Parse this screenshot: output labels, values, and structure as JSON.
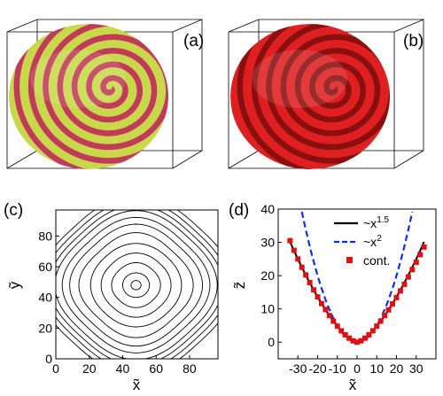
{
  "panels": {
    "a": {
      "label": "(a)",
      "surface_colors": [
        "#c8d84a",
        "#c23a5a"
      ]
    },
    "b": {
      "label": "(b)",
      "surface_colors": [
        "#e02020",
        "#8a0f0f"
      ]
    },
    "c": {
      "label": "(c)"
    },
    "d": {
      "label": "(d)"
    }
  },
  "chart_data": [
    {
      "type": "line",
      "panel": "(c)",
      "description_of_marks": "contour lines",
      "xlabel": "x̃",
      "ylabel": "ỹ",
      "xlim": [
        0,
        97
      ],
      "ylim": [
        0,
        97
      ],
      "xticks": [
        0,
        20,
        40,
        60,
        80
      ],
      "yticks": [
        0,
        20,
        40,
        60,
        80
      ],
      "center": [
        48,
        48
      ],
      "contour_half_widths": [
        3,
        8,
        14,
        20,
        26,
        31,
        36,
        40,
        44,
        47,
        50,
        53
      ],
      "line_color": "#000000"
    },
    {
      "type": "line",
      "panel": "(d)",
      "xlabel": "x̃",
      "ylabel": "z̃",
      "xlim": [
        -40,
        40
      ],
      "ylim": [
        -5,
        40
      ],
      "xticks": [
        -30,
        -20,
        -10,
        0,
        10,
        20,
        30
      ],
      "yticks": [
        0,
        10,
        20,
        30,
        40
      ],
      "series": [
        {
          "name": "~x",
          "name_sup": "1.5",
          "style": "solid",
          "color": "#000000",
          "coef": 0.152,
          "power": 1.5,
          "xrange": [
            -34,
            34
          ]
        },
        {
          "name": "~x",
          "name_sup": "2",
          "style": "dashed",
          "color": "#1030e0",
          "coef": 0.05,
          "power": 2,
          "xrange": [
            -29,
            29
          ]
        },
        {
          "name": "cont.",
          "style": "markers",
          "color": "#e01010",
          "x": [
            -34,
            -32,
            -30,
            -28,
            -26,
            -24,
            -22,
            -20,
            -18,
            -16,
            -14,
            -12,
            -10,
            -8,
            -6,
            -4,
            -2,
            0,
            2,
            4,
            6,
            8,
            10,
            12,
            14,
            16,
            18,
            20,
            22,
            24,
            26,
            28,
            30,
            32,
            34
          ],
          "y": [
            30.5,
            27.6,
            25.0,
            22.5,
            20.2,
            17.9,
            15.7,
            13.6,
            11.6,
            9.8,
            8.0,
            6.3,
            4.8,
            3.4,
            2.2,
            1.2,
            0.4,
            0.0,
            0.4,
            1.2,
            2.2,
            3.4,
            4.8,
            6.3,
            8.0,
            9.7,
            11.5,
            13.4,
            15.4,
            17.4,
            19.6,
            21.8,
            24.0,
            26.3,
            28.6
          ]
        }
      ],
      "legend_placement": "top-right"
    }
  ]
}
